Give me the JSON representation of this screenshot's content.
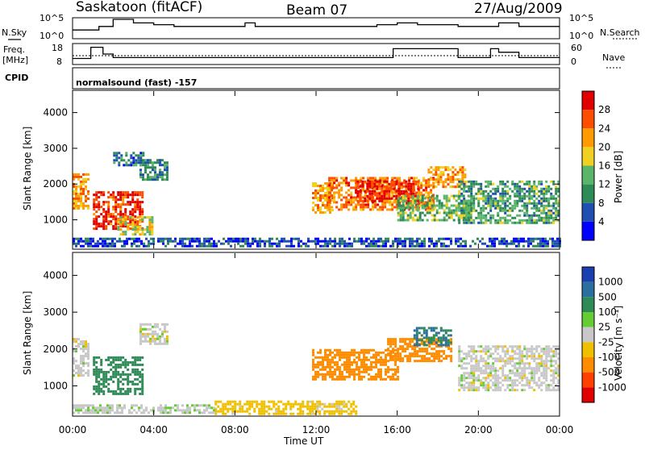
{
  "header": {
    "station": "Saskatoon (fitACF)",
    "beam": "Beam 07",
    "date": "27/Aug/2009"
  },
  "side_labels": {
    "nsky": "N.Sky",
    "freq_line1": "Freq.",
    "freq_line2": "[MHz]",
    "cpid": "CPID",
    "nsearch": "N.Search",
    "nave": "Nave"
  },
  "cpid_text": "normalsound (fast) -157",
  "panels": {
    "power_ylabel": "Slant Range [km]",
    "velocity_ylabel": "Slant Range [km]",
    "xlabel": "Time UT",
    "power_cbar_label": "Power [dB]",
    "velocity_cbar_label": "Velocity [m s⁻¹]"
  },
  "strip_ticks": {
    "nsky": [
      "10^5",
      "10^0"
    ],
    "nsearch": [
      "10^5",
      "10^0"
    ],
    "freq": [
      "18",
      "8"
    ],
    "nave": [
      "60",
      "0"
    ]
  },
  "colors": {
    "power_scale": [
      "#0000ff",
      "#1f4fb0",
      "#2e8b57",
      "#5ab46a",
      "#f0d020",
      "#ff9a00",
      "#ff4d00",
      "#e00000"
    ],
    "velocity_scale": [
      "#1a3fb0",
      "#2a6fa0",
      "#2e8b57",
      "#66cc33",
      "#c8c8c8",
      "#f0c000",
      "#ff8c00",
      "#ff4000",
      "#e00000"
    ]
  },
  "chart_data": [
    {
      "type": "line",
      "name": "N.Sky",
      "x_hours": [
        0,
        1,
        1.3,
        2,
        3,
        4,
        5,
        6,
        7,
        8,
        8.5,
        9,
        10,
        11,
        12,
        13,
        14,
        15,
        16,
        17,
        18,
        19,
        20,
        21,
        22,
        23,
        24
      ],
      "values": [
        2,
        2,
        3,
        5,
        4,
        3.5,
        3,
        3,
        3,
        3,
        4,
        3,
        3,
        3,
        3,
        3,
        3,
        3.5,
        4,
        3.5,
        3.5,
        3,
        3,
        4,
        3,
        3,
        3
      ],
      "ylim": [
        0,
        5
      ],
      "yticks": [
        "10^0",
        "10^5"
      ]
    },
    {
      "type": "line",
      "name": "Freq.",
      "x_hours": [
        0,
        0.5,
        0.9,
        1.1,
        1.5,
        2,
        5,
        10,
        13,
        15,
        15.8,
        16,
        17,
        19,
        20,
        20.6,
        21,
        22,
        24
      ],
      "values": [
        10.5,
        10.5,
        16.8,
        16.8,
        13,
        11,
        11,
        11,
        11,
        11,
        16,
        16,
        16,
        11,
        11,
        16,
        14,
        11,
        11
      ],
      "ylim": [
        8,
        18
      ],
      "yticks": [
        18,
        8
      ]
    },
    {
      "type": "heatmap",
      "name": "Power",
      "x": [
        "00:00",
        "04:00",
        "08:00",
        "12:00",
        "16:00",
        "20:00",
        "00:00"
      ],
      "x_range_hours": [
        0,
        24
      ],
      "ylabel": "Slant Range [km]",
      "yticks": [
        1000,
        2000,
        3000,
        4000
      ],
      "ylim": [
        200,
        4600
      ],
      "colorbar": {
        "label": "Power [dB]",
        "ticks": [
          4,
          8,
          12,
          16,
          20,
          24,
          28
        ],
        "range": [
          0,
          32
        ]
      },
      "regions": [
        {
          "t0": 0.0,
          "t1": 0.8,
          "r0": 1300,
          "r1": 2300,
          "level": 22
        },
        {
          "t0": 1.0,
          "t1": 3.4,
          "r0": 750,
          "r1": 1800,
          "level": 28
        },
        {
          "t0": 2.2,
          "t1": 3.9,
          "r0": 600,
          "r1": 1100,
          "level": 18
        },
        {
          "t0": 3.3,
          "t1": 4.7,
          "r0": 2150,
          "r1": 2700,
          "level": 10
        },
        {
          "t0": 2.0,
          "t1": 3.5,
          "r0": 2500,
          "r1": 2900,
          "level": 8
        },
        {
          "t0": 11.8,
          "t1": 12.8,
          "r0": 1200,
          "r1": 2050,
          "level": 22
        },
        {
          "t0": 12.6,
          "t1": 17.8,
          "r0": 1300,
          "r1": 2200,
          "level": 24
        },
        {
          "t0": 14.0,
          "t1": 17.0,
          "r0": 1500,
          "r1": 2100,
          "level": 28
        },
        {
          "t0": 16.0,
          "t1": 19.6,
          "r0": 1000,
          "r1": 1700,
          "level": 14
        },
        {
          "t0": 17.5,
          "t1": 19.4,
          "r0": 1900,
          "r1": 2500,
          "level": 22
        },
        {
          "t0": 19.0,
          "t1": 24.0,
          "r0": 900,
          "r1": 2100,
          "level": 12
        },
        {
          "t0": 0.0,
          "t1": 24.0,
          "r0": 250,
          "r1": 500,
          "level": 6
        }
      ]
    },
    {
      "type": "heatmap",
      "name": "Velocity",
      "x": [
        "00:00",
        "04:00",
        "08:00",
        "12:00",
        "16:00",
        "20:00",
        "00:00"
      ],
      "x_range_hours": [
        0,
        24
      ],
      "ylabel": "Slant Range [km]",
      "yticks": [
        1000,
        2000,
        3000,
        4000
      ],
      "ylim": [
        200,
        4600
      ],
      "colorbar": {
        "label": "Velocity [m s⁻¹]",
        "ticks": [
          1000,
          500,
          100,
          25,
          -25,
          -100,
          -500,
          -1000
        ]
      },
      "regions": [
        {
          "t0": 0.0,
          "t1": 0.8,
          "r0": 1300,
          "r1": 2300,
          "level": 0
        },
        {
          "t0": 1.0,
          "t1": 3.4,
          "r0": 750,
          "r1": 1800,
          "level": 150
        },
        {
          "t0": 3.3,
          "t1": 4.7,
          "r0": 2150,
          "r1": 2700,
          "level": 0
        },
        {
          "t0": 11.8,
          "t1": 16.0,
          "r0": 1200,
          "r1": 2000,
          "level": -300
        },
        {
          "t0": 15.5,
          "t1": 18.6,
          "r0": 1700,
          "r1": 2300,
          "level": -300
        },
        {
          "t0": 16.8,
          "t1": 18.6,
          "r0": 2100,
          "r1": 2600,
          "level": 500
        },
        {
          "t0": 19.0,
          "t1": 24.0,
          "r0": 900,
          "r1": 2100,
          "level": 0
        },
        {
          "t0": 7.0,
          "t1": 14.0,
          "r0": 250,
          "r1": 600,
          "level": -50
        },
        {
          "t0": 0.0,
          "t1": 7.0,
          "r0": 250,
          "r1": 500,
          "level": 10
        }
      ]
    }
  ]
}
